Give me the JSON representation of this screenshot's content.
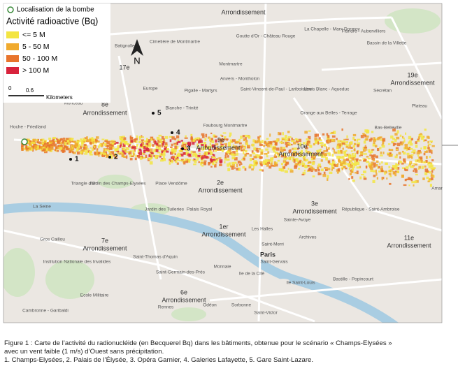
{
  "map": {
    "legend": {
      "bomb": "Localisation de la bombe",
      "title": "Activité radioactive (Bq)",
      "items": [
        {
          "label": "<= 5 M",
          "color": "#f3e542"
        },
        {
          "label": "5 - 50 M",
          "color": "#f0aa2e"
        },
        {
          "label": "50 - 100 M",
          "color": "#e8742c"
        },
        {
          "label": "> 100 M",
          "color": "#d8233c"
        }
      ]
    },
    "scale": {
      "start": "0",
      "end": "0.6",
      "unit": "Kilometers"
    },
    "north": "N",
    "markers": [
      "1",
      "2",
      "3",
      "4",
      "5"
    ],
    "labels": [
      "Arrondissement",
      "Goutte d'Or - Château Rouge",
      "La Chapelle - Marx Dormoy",
      "Flandre - Aubervilliers",
      "Bassin de la Villette",
      "Cimetière de Montmartre",
      "Batignolles",
      "17e",
      "Montmartre",
      "Anvers - Montholon",
      "Saint-Vincent-de-Paul - Lariboisière",
      "Louis Blanc - Aqueduc",
      "19e",
      "Arrondissement",
      "Sécrétan",
      "Europe",
      "Pigalle - Martyrs",
      "Blanche - Trinité",
      "8e",
      "Arrondissement",
      "Monceau",
      "Orange aux Belles - Terrage",
      "Plateau",
      "Hoche - Friedland",
      "Bas-Belleville",
      "Faubourg Montmartre",
      "9e",
      "Arrondissement",
      "10e",
      "Arrondissement",
      "Triangle d'Or",
      "Jardin des Champs-Elysées",
      "Place Vendôme",
      "2e",
      "Arrondissement",
      "Amar",
      "Jardin des Tuileries",
      "Palais Royal",
      "3e",
      "Arrondissement",
      "République - Saint-Ambroise",
      "La Seine",
      "Sainte-Avoye",
      "1er",
      "Arrondissement",
      "Les Halles",
      "Archives",
      "Gros Caillou",
      "7e",
      "Arrondissement",
      "11e",
      "Arrondissement",
      "Paris",
      "Saint-Merri",
      "Saint-Thomas d'Aquin",
      "Saint-Gervais",
      "Institution Nationale des Invalides",
      "Monnaie",
      "Saint-Germain-des-Prés",
      "Bastille - Popincourt",
      "Ile de la Cité",
      "Ecole Militaire",
      "6e",
      "Arrondissement",
      "Ile Saint-Louis",
      "Cambronne - Garibaldi",
      "Rennes",
      "Odéon",
      "Sorbonne",
      "Saint-Victor"
    ]
  },
  "figure": {
    "caption": [
      "Figure 1 : Carte de l’activité du radionucléide (en Becquerel Bq) dans les bâtiments, obtenue pour le scénario « Champs-Elysées »",
      "avec un vent faible (1 m/s) d’Ouest sans précipitation.",
      "1. Champs-Elysées, 2. Palais de l’Élysée, 3. Opéra Garnier, 4. Galeries Lafayette, 5. Gare Saint-Lazare."
    ]
  }
}
